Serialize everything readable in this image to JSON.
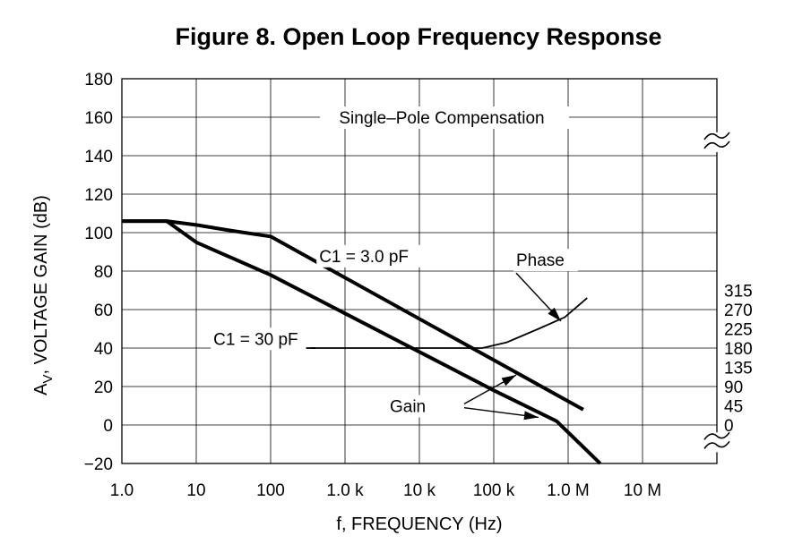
{
  "chart_data": {
    "type": "line",
    "title": "Figure 8. Open Loop Frequency Response",
    "xlabel": "f, FREQUENCY (Hz)",
    "ylabel": "A",
    "ylabel_sub": "V",
    "ylabel_rest": ", VOLTAGE GAIN (dB)",
    "x_scale": "log",
    "xlim": [
      1,
      100000000
    ],
    "ylim": [
      -20,
      180
    ],
    "grid": true,
    "x_ticks": [
      {
        "value": 1,
        "label": "1.0"
      },
      {
        "value": 10,
        "label": "10"
      },
      {
        "value": 100,
        "label": "100"
      },
      {
        "value": 1000,
        "label": "1.0 k"
      },
      {
        "value": 10000,
        "label": "10 k"
      },
      {
        "value": 100000,
        "label": "100 k"
      },
      {
        "value": 1000000,
        "label": "1.0 M"
      },
      {
        "value": 10000000,
        "label": "10 M"
      }
    ],
    "y_ticks": [
      {
        "value": 180,
        "label": "180"
      },
      {
        "value": 160,
        "label": "160"
      },
      {
        "value": 140,
        "label": "140"
      },
      {
        "value": 120,
        "label": "120"
      },
      {
        "value": 100,
        "label": "100"
      },
      {
        "value": 80,
        "label": "80"
      },
      {
        "value": 60,
        "label": "60"
      },
      {
        "value": 40,
        "label": "40"
      },
      {
        "value": 20,
        "label": "20"
      },
      {
        "value": 0,
        "label": "0"
      },
      {
        "value": -20,
        "label": "−20"
      }
    ],
    "y2_ticks": [
      {
        "value": 315,
        "label": "315"
      },
      {
        "value": 270,
        "label": "270"
      },
      {
        "value": 225,
        "label": "225"
      },
      {
        "value": 180,
        "label": "180"
      },
      {
        "value": 135,
        "label": "135"
      },
      {
        "value": 90,
        "label": "90"
      },
      {
        "value": 45,
        "label": "45"
      },
      {
        "value": 0,
        "label": "0"
      }
    ],
    "y2_mapping": {
      "deg_per_db": 4.5,
      "zero_at_db": 0
    },
    "series": [
      {
        "id": "gain-c1-3pf",
        "style": "bold",
        "x": [
          1,
          4,
          10,
          30,
          100,
          1600000
        ],
        "y": [
          106,
          106,
          104,
          101,
          98,
          8
        ]
      },
      {
        "id": "gain-c1-30pf",
        "style": "bold",
        "x": [
          1,
          4,
          10,
          100,
          1000,
          10000,
          100000,
          700000,
          2700000
        ],
        "y": [
          106,
          106,
          95,
          78,
          58,
          38,
          18,
          2,
          -20
        ]
      },
      {
        "id": "phase",
        "style": "thin",
        "x": [
          300,
          70000,
          150000,
          400000,
          900000,
          1800000
        ],
        "y": [
          40,
          40,
          43,
          50,
          56,
          66
        ]
      }
    ],
    "annotations": [
      {
        "id": "single-pole",
        "text": "Single–Pole Compensation"
      },
      {
        "id": "c1-3pf",
        "text": "C1 = 3.0 pF"
      },
      {
        "id": "c1-30pf",
        "text": "C1 = 30 pF"
      },
      {
        "id": "phase",
        "text": "Phase"
      },
      {
        "id": "gain",
        "text": "Gain"
      }
    ]
  }
}
